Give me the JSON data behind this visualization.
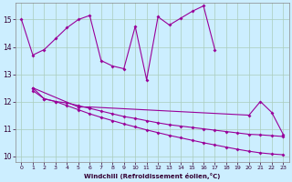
{
  "xlabel": "Windchill (Refroidissement éolien,°C)",
  "background_color": "#cceeff",
  "grid_color": "#aaccbb",
  "line_color": "#990099",
  "ylim": [
    9.8,
    15.6
  ],
  "xlim": [
    -0.5,
    23.5
  ],
  "yticks": [
    10,
    11,
    12,
    13,
    14,
    15
  ],
  "xticks": [
    0,
    1,
    2,
    3,
    4,
    5,
    6,
    7,
    8,
    9,
    10,
    11,
    12,
    13,
    14,
    15,
    16,
    17,
    18,
    19,
    20,
    21,
    22,
    23
  ],
  "curve1_x": [
    0,
    1,
    2,
    3,
    4,
    5,
    6,
    7,
    8,
    9,
    10,
    11,
    12,
    13,
    14,
    15,
    16,
    17
  ],
  "curve1_y": [
    15.0,
    13.7,
    13.9,
    14.3,
    14.7,
    15.0,
    15.15,
    13.5,
    13.3,
    13.2,
    14.75,
    12.8,
    15.1,
    14.8,
    15.05,
    15.3,
    15.5,
    13.9
  ],
  "line1_x": [
    1,
    2,
    3,
    4,
    5,
    6,
    7,
    8,
    9,
    10,
    11,
    12,
    13,
    14,
    15,
    16,
    17,
    18,
    19,
    20,
    21,
    22,
    23
  ],
  "line1_y": [
    12.5,
    12.1,
    12.0,
    11.95,
    11.85,
    11.75,
    11.65,
    11.55,
    11.45,
    11.38,
    11.3,
    11.22,
    11.15,
    11.1,
    11.05,
    11.0,
    10.95,
    10.9,
    10.85,
    10.8,
    10.78,
    10.75,
    10.72
  ],
  "line2_x": [
    1,
    2,
    3,
    4,
    5,
    6,
    7,
    8,
    9,
    10,
    11,
    12,
    13,
    14,
    15,
    16,
    17,
    18,
    19,
    20,
    21,
    22,
    23
  ],
  "line2_y": [
    12.4,
    12.1,
    12.0,
    11.85,
    11.7,
    11.55,
    11.42,
    11.3,
    11.18,
    11.07,
    10.96,
    10.86,
    10.76,
    10.67,
    10.58,
    10.49,
    10.41,
    10.33,
    10.25,
    10.18,
    10.12,
    10.08,
    10.05
  ],
  "scatter_x": [
    1,
    5,
    6,
    20,
    21,
    22,
    23
  ],
  "scatter_y": [
    12.5,
    11.8,
    11.8,
    11.5,
    12.0,
    11.6,
    10.8
  ]
}
